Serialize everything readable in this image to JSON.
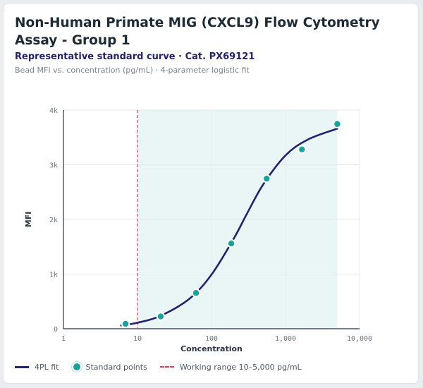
{
  "header": {
    "title": "Non-Human Primate MIG (CXCL9) Flow Cytometry Assay - Group 1",
    "subtitle": "Representative standard curve · Cat. PX69121",
    "caption": "Bead MFI vs. concentration (pg/mL) · 4-parameter logistic fit"
  },
  "colors": {
    "curve": "#25226f",
    "points": "#16a39a",
    "working_range_line": "#d9415e",
    "working_range_fill": "#eaf6f6"
  },
  "legend": {
    "curve_label": "4PL fit",
    "points_label": "Standard points",
    "range_label": "Working range 10–5,000 pg/mL"
  },
  "chart_data": {
    "type": "scatter",
    "xlabel": "Concentration",
    "ylabel": "MFI",
    "x_scale": "log",
    "xlim": [
      1,
      10000
    ],
    "ylim": [
      0,
      4000
    ],
    "x_ticks": [
      1,
      10,
      100,
      1000,
      10000
    ],
    "x_tick_labels": [
      "1",
      "10",
      "100",
      "1,000",
      "10,000"
    ],
    "y_ticks": [
      0,
      1000,
      2000,
      3000,
      4000
    ],
    "y_tick_labels": [
      "0",
      "1k",
      "2k",
      "3k",
      "4k"
    ],
    "grid": true,
    "legend_position": "bottom",
    "working_range": [
      10,
      5000
    ],
    "series": [
      {
        "name": "Standard points",
        "x": [
          6.9,
          20.6,
          61.7,
          185,
          556,
          1667,
          5000
        ],
        "y": [
          90,
          225,
          655,
          1560,
          2745,
          3280,
          3745
        ]
      }
    ],
    "fit": {
      "name": "4PL fit",
      "model": "4-parameter logistic",
      "x_range": [
        6,
        5000
      ],
      "x": [
        6,
        10,
        20,
        50,
        100,
        200,
        300,
        500,
        1000,
        2000,
        5000
      ],
      "y": [
        60,
        110,
        230,
        545,
        990,
        1650,
        2100,
        2640,
        3170,
        3460,
        3660
      ]
    }
  }
}
